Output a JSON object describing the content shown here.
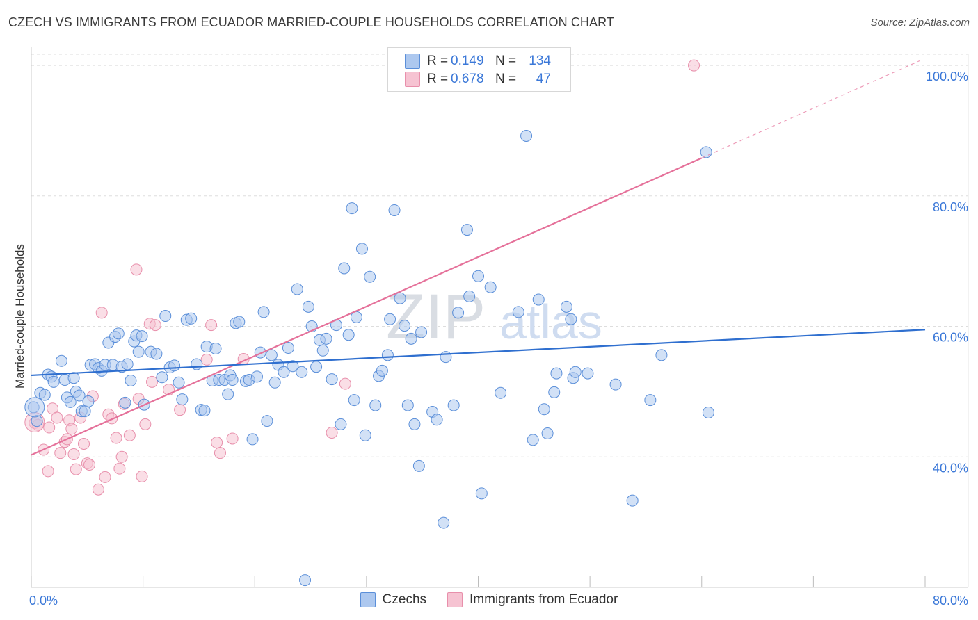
{
  "title": "CZECH VS IMMIGRANTS FROM ECUADOR MARRIED-COUPLE HOUSEHOLDS CORRELATION CHART",
  "source": "Source: ZipAtlas.com",
  "watermark": {
    "zip": "ZIP",
    "atlas": "atlas"
  },
  "legend": {
    "rows": [
      {
        "r_label": "R =",
        "r_value": "0.149",
        "n_label": "N =",
        "n_value": "134"
      },
      {
        "r_label": "R =",
        "r_value": "0.678",
        "n_label": "N =",
        "n_value": "47"
      }
    ]
  },
  "chart_data": {
    "type": "scatter",
    "title": "CZECH VS IMMIGRANTS FROM ECUADOR MARRIED-COUPLE HOUSEHOLDS CORRELATION CHART",
    "xlabel": "",
    "ylabel": "Married-couple Households",
    "xlim": [
      0,
      80
    ],
    "ylim": [
      20,
      101.5
    ],
    "x_tick_labels": [
      {
        "value": 0,
        "label": "0.0%"
      },
      {
        "value": 80,
        "label": "80.0%"
      }
    ],
    "y_tick_labels": [
      {
        "value": 40,
        "label": "40.0%"
      },
      {
        "value": 60,
        "label": "60.0%"
      },
      {
        "value": 80,
        "label": "80.0%"
      },
      {
        "value": 100,
        "label": "100.0%"
      }
    ],
    "colors": {
      "czechs_fill": "#adc8ef",
      "czechs_stroke": "#5b8fd9",
      "czechs_line": "#2f6fcf",
      "ecuador_fill": "#f6c3d2",
      "ecuador_stroke": "#e88fab",
      "ecuador_line": "#e5719a",
      "grid": "#dddddd",
      "tick_label": "#3b78d8"
    },
    "series": [
      {
        "name": "Czechs",
        "r": 0.149,
        "n": 134,
        "trend": {
          "x0": 0,
          "y0": 52.5,
          "x1": 80,
          "y1": 59.5
        },
        "points": [
          [
            0.2,
            47.6
          ],
          [
            0.5,
            45.5
          ],
          [
            0.8,
            49.8
          ],
          [
            1.2,
            49.5
          ],
          [
            1.5,
            52.6
          ],
          [
            1.8,
            52.3
          ],
          [
            2.0,
            51.5
          ],
          [
            2.7,
            54.7
          ],
          [
            3.0,
            51.8
          ],
          [
            3.2,
            49.1
          ],
          [
            3.5,
            48.4
          ],
          [
            3.8,
            52.1
          ],
          [
            4.0,
            50.0
          ],
          [
            4.3,
            49.4
          ],
          [
            4.5,
            47.0
          ],
          [
            4.8,
            47.0
          ],
          [
            5.1,
            48.5
          ],
          [
            5.3,
            54.1
          ],
          [
            5.7,
            54.2
          ],
          [
            6.0,
            53.6
          ],
          [
            6.3,
            53.2
          ],
          [
            6.6,
            54.1
          ],
          [
            6.9,
            57.5
          ],
          [
            7.3,
            54.1
          ],
          [
            7.5,
            58.4
          ],
          [
            7.8,
            58.9
          ],
          [
            8.1,
            53.8
          ],
          [
            8.4,
            48.3
          ],
          [
            8.6,
            54.2
          ],
          [
            8.9,
            51.7
          ],
          [
            9.2,
            57.7
          ],
          [
            9.4,
            58.6
          ],
          [
            9.6,
            56.1
          ],
          [
            9.9,
            58.5
          ],
          [
            10.1,
            48.0
          ],
          [
            10.7,
            56.1
          ],
          [
            11.2,
            55.8
          ],
          [
            11.7,
            52.2
          ],
          [
            12.0,
            61.6
          ],
          [
            12.4,
            53.7
          ],
          [
            12.8,
            54.0
          ],
          [
            13.2,
            51.4
          ],
          [
            13.5,
            48.8
          ],
          [
            13.9,
            61.0
          ],
          [
            14.3,
            61.2
          ],
          [
            14.8,
            54.2
          ],
          [
            15.2,
            47.2
          ],
          [
            15.5,
            47.1
          ],
          [
            15.7,
            56.9
          ],
          [
            16.2,
            51.7
          ],
          [
            16.5,
            56.6
          ],
          [
            16.8,
            51.8
          ],
          [
            17.3,
            51.8
          ],
          [
            17.6,
            49.6
          ],
          [
            17.8,
            52.5
          ],
          [
            18.0,
            51.8
          ],
          [
            18.3,
            60.5
          ],
          [
            18.6,
            60.7
          ],
          [
            19.2,
            51.6
          ],
          [
            19.5,
            51.8
          ],
          [
            19.8,
            42.7
          ],
          [
            20.2,
            52.3
          ],
          [
            20.5,
            56.0
          ],
          [
            20.8,
            62.2
          ],
          [
            21.1,
            45.5
          ],
          [
            21.5,
            55.6
          ],
          [
            21.8,
            51.4
          ],
          [
            22.1,
            54.1
          ],
          [
            22.6,
            53.0
          ],
          [
            23.0,
            56.7
          ],
          [
            23.4,
            53.9
          ],
          [
            23.8,
            65.7
          ],
          [
            24.2,
            53.0
          ],
          [
            24.5,
            21.1
          ],
          [
            24.8,
            63.0
          ],
          [
            25.1,
            60.0
          ],
          [
            25.5,
            53.8
          ],
          [
            25.8,
            57.9
          ],
          [
            26.1,
            56.3
          ],
          [
            26.4,
            58.1
          ],
          [
            26.9,
            51.9
          ],
          [
            27.3,
            60.2
          ],
          [
            27.7,
            45.0
          ],
          [
            28.0,
            68.9
          ],
          [
            28.4,
            58.7
          ],
          [
            28.7,
            78.1
          ],
          [
            28.9,
            48.7
          ],
          [
            29.1,
            61.4
          ],
          [
            29.6,
            71.9
          ],
          [
            29.9,
            43.3
          ],
          [
            30.3,
            67.6
          ],
          [
            30.8,
            47.9
          ],
          [
            31.1,
            52.4
          ],
          [
            31.4,
            53.2
          ],
          [
            31.9,
            55.6
          ],
          [
            32.1,
            61.1
          ],
          [
            32.5,
            77.8
          ],
          [
            33.0,
            64.3
          ],
          [
            33.4,
            60.1
          ],
          [
            33.7,
            47.9
          ],
          [
            34.0,
            58.1
          ],
          [
            34.3,
            45.0
          ],
          [
            34.7,
            38.6
          ],
          [
            34.9,
            59.1
          ],
          [
            35.9,
            46.9
          ],
          [
            36.3,
            45.7
          ],
          [
            36.9,
            29.9
          ],
          [
            37.1,
            55.3
          ],
          [
            37.8,
            47.9
          ],
          [
            38.2,
            62.1
          ],
          [
            39.0,
            74.8
          ],
          [
            39.2,
            64.6
          ],
          [
            40.0,
            67.7
          ],
          [
            40.3,
            34.4
          ],
          [
            41.1,
            66.0
          ],
          [
            42.0,
            49.8
          ],
          [
            43.6,
            62.2
          ],
          [
            44.3,
            89.2
          ],
          [
            44.9,
            42.6
          ],
          [
            45.4,
            64.1
          ],
          [
            45.9,
            47.3
          ],
          [
            46.2,
            43.6
          ],
          [
            46.8,
            49.9
          ],
          [
            47.0,
            52.8
          ],
          [
            47.9,
            63.0
          ],
          [
            48.3,
            61.1
          ],
          [
            48.5,
            52.1
          ],
          [
            48.7,
            53.0
          ],
          [
            49.8,
            52.8
          ],
          [
            52.3,
            51.1
          ],
          [
            53.8,
            33.3
          ],
          [
            55.4,
            48.7
          ],
          [
            56.4,
            55.6
          ],
          [
            60.4,
            86.7
          ],
          [
            60.6,
            46.8
          ]
        ]
      },
      {
        "name": "Immigrants from Ecuador",
        "r": 0.678,
        "n": 47,
        "trend_solid": {
          "x0": 0,
          "y0": 40.3,
          "x1": 60.0,
          "y1": 85.8
        },
        "trend_dashed": {
          "x0": 60.0,
          "y0": 85.8,
          "x1": 79.5,
          "y1": 100.7
        },
        "points": [
          [
            0.3,
            45.2
          ],
          [
            0.6,
            44.9
          ],
          [
            1.1,
            41.1
          ],
          [
            1.5,
            37.8
          ],
          [
            1.6,
            44.5
          ],
          [
            1.9,
            47.4
          ],
          [
            2.3,
            46.0
          ],
          [
            2.6,
            40.6
          ],
          [
            3.0,
            42.3
          ],
          [
            3.2,
            42.7
          ],
          [
            3.4,
            45.6
          ],
          [
            3.6,
            44.3
          ],
          [
            3.8,
            40.4
          ],
          [
            4.0,
            38.1
          ],
          [
            4.4,
            46.0
          ],
          [
            4.7,
            42.0
          ],
          [
            5.0,
            39.0
          ],
          [
            5.2,
            38.8
          ],
          [
            5.5,
            49.3
          ],
          [
            6.0,
            35.0
          ],
          [
            6.3,
            62.1
          ],
          [
            6.6,
            36.9
          ],
          [
            6.9,
            46.5
          ],
          [
            7.2,
            45.9
          ],
          [
            7.6,
            42.9
          ],
          [
            7.9,
            38.2
          ],
          [
            8.1,
            40.0
          ],
          [
            8.3,
            48.1
          ],
          [
            8.8,
            43.3
          ],
          [
            9.4,
            68.7
          ],
          [
            9.6,
            48.9
          ],
          [
            9.9,
            37.0
          ],
          [
            10.2,
            45.0
          ],
          [
            10.6,
            60.4
          ],
          [
            10.8,
            51.5
          ],
          [
            11.1,
            60.2
          ],
          [
            12.3,
            50.3
          ],
          [
            13.3,
            47.2
          ],
          [
            15.7,
            54.9
          ],
          [
            16.1,
            60.2
          ],
          [
            16.6,
            42.2
          ],
          [
            16.9,
            40.6
          ],
          [
            18.0,
            42.8
          ],
          [
            19.0,
            55.0
          ],
          [
            26.9,
            43.7
          ],
          [
            28.1,
            51.2
          ],
          [
            59.3,
            100.0
          ]
        ]
      }
    ]
  },
  "bottom_legend": [
    {
      "label": "Czechs"
    },
    {
      "label": "Immigrants from Ecuador"
    }
  ]
}
